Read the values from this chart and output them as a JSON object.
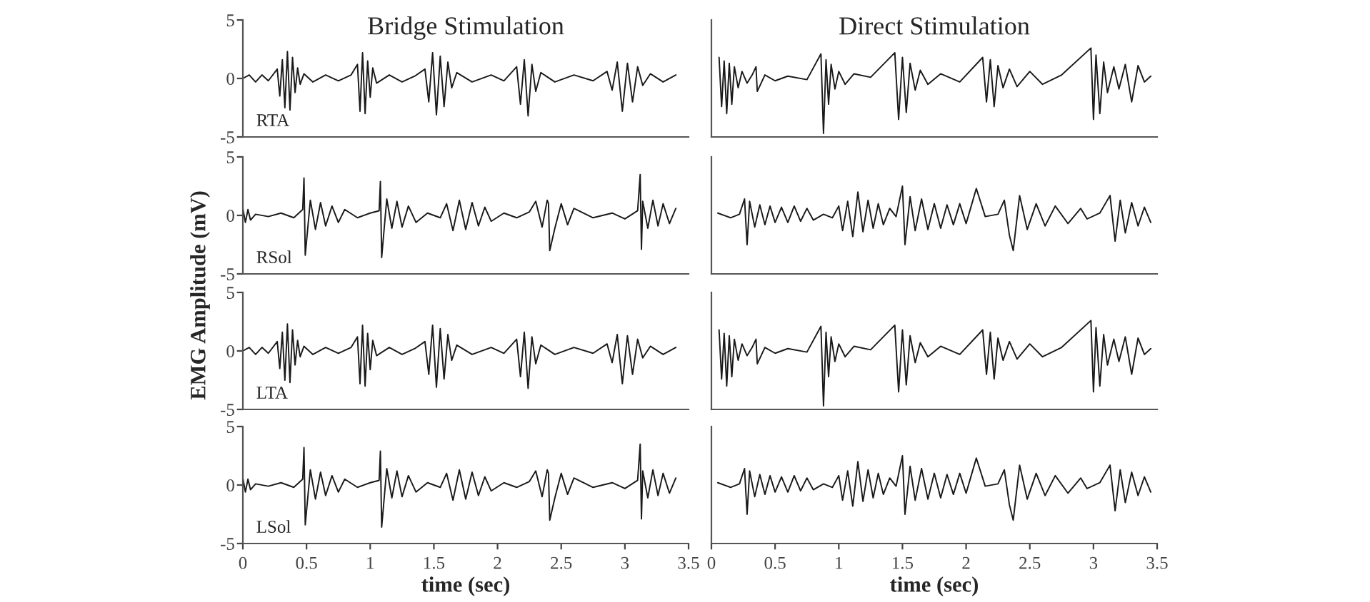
{
  "chart_data": [
    {
      "type": "line",
      "title": "Bridge Stimulation",
      "annotations": [
        "RTA"
      ],
      "xlim": [
        0,
        3.5
      ],
      "ylim": [
        -5,
        5
      ],
      "xticks": [
        0,
        0.5,
        1,
        1.5,
        2,
        2.5,
        3,
        3.5
      ],
      "yticks": [
        -5,
        0,
        5
      ],
      "tick_labels": "y",
      "series": [
        {
          "color": "#1a1a1a",
          "x": [
            0,
            0.05,
            0.1,
            0.15,
            0.2,
            0.27,
            0.29,
            0.31,
            0.33,
            0.35,
            0.37,
            0.39,
            0.41,
            0.43,
            0.45,
            0.48,
            0.55,
            0.65,
            0.75,
            0.85,
            0.9,
            0.92,
            0.94,
            0.96,
            0.98,
            1.0,
            1.02,
            1.05,
            1.15,
            1.25,
            1.35,
            1.43,
            1.46,
            1.49,
            1.52,
            1.55,
            1.58,
            1.61,
            1.64,
            1.68,
            1.8,
            1.95,
            2.05,
            2.15,
            2.18,
            2.21,
            2.24,
            2.27,
            2.3,
            2.34,
            2.45,
            2.6,
            2.75,
            2.86,
            2.9,
            2.94,
            2.98,
            3.02,
            3.06,
            3.1,
            3.14,
            3.2,
            3.3,
            3.4
          ],
          "values": [
            0,
            0.3,
            -0.3,
            0.3,
            -0.2,
            0.8,
            -1.5,
            1.6,
            -2.5,
            2.3,
            -2.7,
            1.8,
            -1.2,
            0.9,
            -0.5,
            0.4,
            -0.3,
            0.3,
            -0.2,
            0.3,
            1.2,
            -2.8,
            2.2,
            -3.0,
            1.5,
            -1.6,
            0.9,
            -0.4,
            0.3,
            -0.3,
            0.2,
            0.8,
            -2.0,
            2.2,
            -3.1,
            1.9,
            -2.4,
            1.4,
            -0.8,
            0.5,
            -0.3,
            0.3,
            -0.2,
            1.0,
            -2.2,
            1.6,
            -3.2,
            1.2,
            -1.1,
            0.5,
            -0.3,
            0.3,
            -0.2,
            0.6,
            -1.0,
            1.4,
            -2.8,
            1.3,
            -2.0,
            1.0,
            -0.6,
            0.4,
            -0.3,
            0.3
          ]
        }
      ]
    },
    {
      "type": "line",
      "title": "Direct Stimulation",
      "xlim": [
        0,
        3.5
      ],
      "ylim": [
        -5,
        5
      ],
      "xticks": [
        0,
        0.5,
        1,
        1.5,
        2,
        2.5,
        3,
        3.5
      ],
      "yticks": [
        -5,
        0,
        5
      ],
      "tick_labels": false,
      "series": [
        {
          "color": "#1a1a1a",
          "x": [
            0.06,
            0.08,
            0.1,
            0.12,
            0.14,
            0.16,
            0.18,
            0.21,
            0.24,
            0.28,
            0.32,
            0.35,
            0.36,
            0.42,
            0.5,
            0.6,
            0.75,
            0.86,
            0.88,
            0.9,
            0.92,
            0.94,
            0.97,
            1.0,
            1.05,
            1.12,
            1.25,
            1.44,
            1.47,
            1.5,
            1.53,
            1.56,
            1.6,
            1.64,
            1.7,
            1.8,
            1.95,
            2.13,
            2.16,
            2.19,
            2.22,
            2.25,
            2.29,
            2.34,
            2.4,
            2.5,
            2.6,
            2.75,
            2.98,
            3.0,
            3.02,
            3.05,
            3.08,
            3.11,
            3.16,
            3.2,
            3.25,
            3.3,
            3.35,
            3.4,
            3.45
          ],
          "values": [
            1.8,
            -2.4,
            1.5,
            -3.0,
            1.3,
            -2.2,
            1.0,
            -0.8,
            0.6,
            -0.4,
            0.3,
            1.0,
            -1.1,
            0.3,
            -0.2,
            0.2,
            -0.1,
            2.1,
            -4.7,
            1.6,
            -2.2,
            1.2,
            -0.9,
            0.6,
            -0.5,
            0.4,
            0.1,
            2.2,
            -3.5,
            1.8,
            -2.9,
            1.3,
            -1.0,
            0.7,
            -0.5,
            0.4,
            -0.3,
            1.8,
            -2.0,
            1.6,
            -2.4,
            1.1,
            -0.8,
            0.8,
            -0.7,
            0.6,
            -0.5,
            0.3,
            2.6,
            -3.5,
            2.0,
            -3.0,
            1.4,
            -1.2,
            1.0,
            -0.9,
            1.2,
            -2.0,
            1.1,
            -0.3,
            0.2
          ]
        }
      ]
    },
    {
      "type": "line",
      "ylabel": "EMG Amplitude (mV)",
      "annotations": [
        "RSol"
      ],
      "xlim": [
        0,
        3.5
      ],
      "ylim": [
        -5,
        5
      ],
      "xticks": [
        0,
        0.5,
        1,
        1.5,
        2,
        2.5,
        3,
        3.5
      ],
      "yticks": [
        -5,
        0,
        5
      ],
      "tick_labels": "y",
      "series": [
        {
          "color": "#1a1a1a",
          "x": [
            0,
            0.02,
            0.04,
            0.06,
            0.1,
            0.2,
            0.3,
            0.4,
            0.47,
            0.48,
            0.49,
            0.53,
            0.57,
            0.61,
            0.65,
            0.7,
            0.75,
            0.8,
            0.9,
            1.0,
            1.07,
            1.08,
            1.09,
            1.13,
            1.17,
            1.21,
            1.25,
            1.3,
            1.36,
            1.45,
            1.55,
            1.6,
            1.65,
            1.7,
            1.75,
            1.8,
            1.85,
            1.9,
            1.95,
            2.05,
            2.15,
            2.25,
            2.3,
            2.35,
            2.39,
            2.4,
            2.41,
            2.45,
            2.5,
            2.55,
            2.6,
            2.75,
            2.9,
            3.0,
            3.1,
            3.12,
            3.13,
            3.14,
            3.18,
            3.22,
            3.26,
            3.3,
            3.35,
            3.4
          ],
          "values": [
            0.6,
            -0.6,
            0.5,
            -0.4,
            0.1,
            -0.1,
            0.2,
            -0.2,
            0.5,
            3.2,
            -3.4,
            1.3,
            -1.2,
            1.1,
            -0.9,
            0.8,
            -0.6,
            0.5,
            -0.2,
            0.2,
            0.4,
            2.9,
            -3.6,
            1.4,
            -1.1,
            1.2,
            -1.0,
            0.8,
            -0.6,
            0.2,
            -0.2,
            1.0,
            -1.3,
            1.3,
            -1.2,
            1.1,
            -0.9,
            0.7,
            -0.5,
            0.2,
            -0.2,
            0.3,
            1.2,
            -1.0,
            1.3,
            1.0,
            -3.0,
            -1.1,
            1.0,
            -0.8,
            0.6,
            -0.2,
            0.2,
            -0.3,
            0.4,
            3.5,
            -2.9,
            1.2,
            -1.1,
            1.3,
            -0.9,
            1.0,
            -0.7,
            0.6
          ]
        }
      ]
    },
    {
      "type": "line",
      "xlim": [
        0,
        3.5
      ],
      "ylim": [
        -5,
        5
      ],
      "xticks": [
        0,
        0.5,
        1,
        1.5,
        2,
        2.5,
        3,
        3.5
      ],
      "yticks": [
        -5,
        0,
        5
      ],
      "tick_labels": false,
      "series": [
        {
          "color": "#1a1a1a",
          "x": [
            0.05,
            0.15,
            0.22,
            0.26,
            0.28,
            0.3,
            0.34,
            0.38,
            0.42,
            0.46,
            0.5,
            0.55,
            0.6,
            0.65,
            0.7,
            0.75,
            0.8,
            0.88,
            0.95,
            1.0,
            1.03,
            1.07,
            1.11,
            1.15,
            1.19,
            1.23,
            1.27,
            1.31,
            1.35,
            1.4,
            1.45,
            1.5,
            1.52,
            1.56,
            1.6,
            1.65,
            1.7,
            1.75,
            1.8,
            1.85,
            1.9,
            1.95,
            2.0,
            2.04,
            2.08,
            2.15,
            2.25,
            2.3,
            2.34,
            2.37,
            2.42,
            2.48,
            2.55,
            2.62,
            2.7,
            2.8,
            2.9,
            2.95,
            3.05,
            3.13,
            3.17,
            3.21,
            3.25,
            3.3,
            3.35,
            3.4,
            3.45
          ],
          "values": [
            0.2,
            -0.2,
            0.1,
            1.4,
            -2.5,
            1.2,
            -1.0,
            0.9,
            -0.8,
            0.8,
            -0.6,
            0.7,
            -0.6,
            0.8,
            -0.5,
            0.6,
            -0.4,
            0.1,
            -0.2,
            0.8,
            -1.3,
            1.2,
            -1.8,
            2.0,
            -1.4,
            1.3,
            -1.1,
            1.0,
            -0.8,
            0.6,
            -0.1,
            2.5,
            -2.5,
            1.6,
            -1.3,
            1.4,
            -1.2,
            1.0,
            -1.1,
            0.9,
            -0.8,
            1.0,
            -0.7,
            0.8,
            2.3,
            -0.1,
            0.1,
            1.3,
            -1.7,
            -3.0,
            1.7,
            -1.2,
            1.0,
            -0.9,
            0.8,
            -0.7,
            0.6,
            -0.3,
            0.2,
            1.7,
            -2.2,
            1.3,
            -1.5,
            1.1,
            -0.9,
            0.7,
            -0.6
          ]
        }
      ]
    },
    {
      "type": "line",
      "annotations": [
        "LTA"
      ],
      "xlim": [
        0,
        3.5
      ],
      "ylim": [
        -5,
        5
      ],
      "xticks": [
        0,
        0.5,
        1,
        1.5,
        2,
        2.5,
        3,
        3.5
      ],
      "yticks": [
        -5,
        0,
        5
      ],
      "tick_labels": "y",
      "series": [
        {
          "color": "#1a1a1a",
          "x": [
            0,
            0.05,
            0.1,
            0.15,
            0.2,
            0.27,
            0.29,
            0.31,
            0.33,
            0.35,
            0.37,
            0.39,
            0.41,
            0.43,
            0.45,
            0.48,
            0.55,
            0.65,
            0.75,
            0.85,
            0.9,
            0.92,
            0.94,
            0.96,
            0.98,
            1.0,
            1.02,
            1.05,
            1.15,
            1.25,
            1.35,
            1.43,
            1.46,
            1.49,
            1.52,
            1.55,
            1.58,
            1.61,
            1.64,
            1.68,
            1.8,
            1.95,
            2.05,
            2.15,
            2.18,
            2.21,
            2.24,
            2.27,
            2.3,
            2.34,
            2.45,
            2.6,
            2.75,
            2.86,
            2.9,
            2.94,
            2.98,
            3.02,
            3.06,
            3.1,
            3.14,
            3.2,
            3.3,
            3.4
          ],
          "values": [
            0,
            0.3,
            -0.3,
            0.3,
            -0.2,
            0.8,
            -1.5,
            1.6,
            -2.5,
            2.3,
            -2.7,
            1.8,
            -1.2,
            0.9,
            -0.5,
            0.4,
            -0.3,
            0.3,
            -0.2,
            0.3,
            1.2,
            -2.8,
            2.2,
            -3.0,
            1.5,
            -1.6,
            0.9,
            -0.4,
            0.3,
            -0.3,
            0.2,
            0.8,
            -2.0,
            2.2,
            -3.1,
            1.9,
            -2.4,
            1.4,
            -0.8,
            0.5,
            -0.3,
            0.3,
            -0.2,
            1.0,
            -2.2,
            1.6,
            -3.2,
            1.2,
            -1.1,
            0.5,
            -0.3,
            0.3,
            -0.2,
            0.6,
            -1.0,
            1.4,
            -2.8,
            1.3,
            -2.0,
            1.0,
            -0.6,
            0.4,
            -0.3,
            0.3
          ]
        }
      ]
    },
    {
      "type": "line",
      "xlim": [
        0,
        3.5
      ],
      "ylim": [
        -5,
        5
      ],
      "xticks": [
        0,
        0.5,
        1,
        1.5,
        2,
        2.5,
        3,
        3.5
      ],
      "yticks": [
        -5,
        0,
        5
      ],
      "tick_labels": false,
      "series": [
        {
          "color": "#1a1a1a",
          "x": [
            0.06,
            0.08,
            0.1,
            0.12,
            0.14,
            0.16,
            0.18,
            0.21,
            0.24,
            0.28,
            0.32,
            0.35,
            0.36,
            0.42,
            0.5,
            0.6,
            0.75,
            0.86,
            0.88,
            0.9,
            0.92,
            0.94,
            0.97,
            1.0,
            1.05,
            1.12,
            1.25,
            1.44,
            1.47,
            1.5,
            1.53,
            1.56,
            1.6,
            1.64,
            1.7,
            1.8,
            1.95,
            2.13,
            2.16,
            2.19,
            2.22,
            2.25,
            2.29,
            2.34,
            2.4,
            2.5,
            2.6,
            2.75,
            2.98,
            3.0,
            3.02,
            3.05,
            3.08,
            3.11,
            3.16,
            3.2,
            3.25,
            3.3,
            3.35,
            3.4,
            3.45
          ],
          "values": [
            1.8,
            -2.4,
            1.5,
            -3.0,
            1.3,
            -2.2,
            1.0,
            -0.8,
            0.6,
            -0.4,
            0.3,
            1.0,
            -1.1,
            0.3,
            -0.2,
            0.2,
            -0.1,
            2.1,
            -4.7,
            1.6,
            -2.2,
            1.2,
            -0.9,
            0.6,
            -0.5,
            0.4,
            0.1,
            2.2,
            -3.5,
            1.8,
            -2.9,
            1.3,
            -1.0,
            0.7,
            -0.5,
            0.4,
            -0.3,
            1.8,
            -2.0,
            1.6,
            -2.4,
            1.1,
            -0.8,
            0.8,
            -0.7,
            0.6,
            -0.5,
            0.3,
            2.6,
            -3.5,
            2.0,
            -3.0,
            1.4,
            -1.2,
            1.0,
            -0.9,
            1.2,
            -2.0,
            1.1,
            -0.3,
            0.2
          ]
        }
      ]
    },
    {
      "type": "line",
      "xlabel": "time (sec)",
      "annotations": [
        "LSol"
      ],
      "xlim": [
        0,
        3.5
      ],
      "ylim": [
        -5,
        5
      ],
      "xticks": [
        0,
        0.5,
        1,
        1.5,
        2,
        2.5,
        3,
        3.5
      ],
      "yticks": [
        -5,
        0,
        5
      ],
      "series": [
        {
          "color": "#1a1a1a",
          "x": [
            0,
            0.02,
            0.04,
            0.06,
            0.1,
            0.2,
            0.3,
            0.4,
            0.47,
            0.48,
            0.49,
            0.53,
            0.57,
            0.61,
            0.65,
            0.7,
            0.75,
            0.8,
            0.9,
            1.0,
            1.07,
            1.08,
            1.09,
            1.13,
            1.17,
            1.21,
            1.25,
            1.3,
            1.36,
            1.45,
            1.55,
            1.6,
            1.65,
            1.7,
            1.75,
            1.8,
            1.85,
            1.9,
            1.95,
            2.05,
            2.15,
            2.25,
            2.3,
            2.35,
            2.39,
            2.4,
            2.41,
            2.45,
            2.5,
            2.55,
            2.6,
            2.75,
            2.9,
            3.0,
            3.1,
            3.12,
            3.13,
            3.14,
            3.18,
            3.22,
            3.26,
            3.3,
            3.35,
            3.4
          ],
          "values": [
            0.6,
            -0.6,
            0.5,
            -0.4,
            0.1,
            -0.1,
            0.2,
            -0.2,
            0.5,
            3.2,
            -3.4,
            1.3,
            -1.2,
            1.1,
            -0.9,
            0.8,
            -0.6,
            0.5,
            -0.2,
            0.2,
            0.4,
            2.9,
            -3.6,
            1.4,
            -1.1,
            1.2,
            -1.0,
            0.8,
            -0.6,
            0.2,
            -0.2,
            1.0,
            -1.3,
            1.3,
            -1.2,
            1.1,
            -0.9,
            0.7,
            -0.5,
            0.2,
            -0.2,
            0.3,
            1.2,
            -1.0,
            1.3,
            1.0,
            -3.0,
            -1.1,
            1.0,
            -0.8,
            0.6,
            -0.2,
            0.2,
            -0.3,
            0.4,
            3.5,
            -2.9,
            1.2,
            -1.1,
            1.3,
            -0.9,
            1.0,
            -0.7,
            0.6
          ]
        }
      ]
    },
    {
      "type": "line",
      "xlabel": "time (sec)",
      "xlim": [
        0,
        3.5
      ],
      "ylim": [
        -5,
        5
      ],
      "xticks": [
        0,
        0.5,
        1,
        1.5,
        2,
        2.5,
        3,
        3.5
      ],
      "yticks": [
        -5,
        0,
        5
      ],
      "tick_labels": "x",
      "series": [
        {
          "color": "#1a1a1a",
          "x": [
            0.05,
            0.15,
            0.22,
            0.26,
            0.28,
            0.3,
            0.34,
            0.38,
            0.42,
            0.46,
            0.5,
            0.55,
            0.6,
            0.65,
            0.7,
            0.75,
            0.8,
            0.88,
            0.95,
            1.0,
            1.03,
            1.07,
            1.11,
            1.15,
            1.19,
            1.23,
            1.27,
            1.31,
            1.35,
            1.4,
            1.45,
            1.5,
            1.52,
            1.56,
            1.6,
            1.65,
            1.7,
            1.75,
            1.8,
            1.85,
            1.9,
            1.95,
            2.0,
            2.04,
            2.08,
            2.15,
            2.25,
            2.3,
            2.34,
            2.37,
            2.42,
            2.48,
            2.55,
            2.62,
            2.7,
            2.8,
            2.9,
            2.95,
            3.05,
            3.13,
            3.17,
            3.21,
            3.25,
            3.3,
            3.35,
            3.4,
            3.45
          ],
          "values": [
            0.2,
            -0.2,
            0.1,
            1.4,
            -2.5,
            1.2,
            -1.0,
            0.9,
            -0.8,
            0.8,
            -0.6,
            0.7,
            -0.6,
            0.8,
            -0.5,
            0.6,
            -0.4,
            0.1,
            -0.2,
            0.8,
            -1.3,
            1.2,
            -1.8,
            2.0,
            -1.4,
            1.3,
            -1.1,
            1.0,
            -0.8,
            0.6,
            -0.1,
            2.5,
            -2.5,
            1.6,
            -1.3,
            1.4,
            -1.2,
            1.0,
            -1.1,
            0.9,
            -0.8,
            1.0,
            -0.7,
            0.8,
            2.3,
            -0.1,
            0.1,
            1.3,
            -1.7,
            -3.0,
            1.7,
            -1.2,
            1.0,
            -0.9,
            0.8,
            -0.7,
            0.6,
            -0.3,
            0.2,
            1.7,
            -2.2,
            1.3,
            -1.5,
            1.1,
            -0.9,
            0.7,
            -0.6
          ]
        }
      ]
    }
  ]
}
